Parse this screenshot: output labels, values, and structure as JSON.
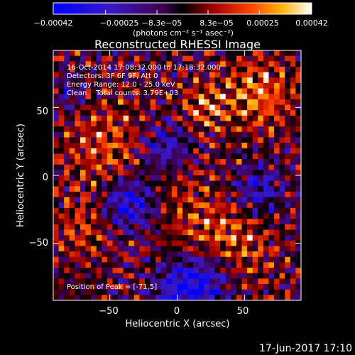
{
  "chart_data": {
    "type": "heatmap",
    "title": "Reconstructed RHESSI Image",
    "xlabel": "Heliocentric X (arcsec)",
    "ylabel": "Heliocentric Y (arcsec)",
    "xlim": [
      -92,
      92
    ],
    "ylim": [
      -92,
      92
    ],
    "xticks": [
      {
        "value": -50,
        "label": "−50"
      },
      {
        "value": 0,
        "label": "0"
      },
      {
        "value": 50,
        "label": "50"
      }
    ],
    "yticks": [
      {
        "value": 50,
        "label": "50"
      },
      {
        "value": 0,
        "label": "0"
      },
      {
        "value": -50,
        "label": "−50"
      }
    ],
    "colorbar": {
      "min": -0.00042,
      "max": 0.00042,
      "ticks": [
        {
          "value": -0.00042,
          "label": "−0.00042"
        },
        {
          "value": -0.00025,
          "label": "−0.00025"
        },
        {
          "value": -8.3e-05,
          "label": "−8.3e−05"
        },
        {
          "value": 8.3e-05,
          "label": "8.3e−05"
        },
        {
          "value": 0.00025,
          "label": "0.00025"
        },
        {
          "value": 0.00042,
          "label": "0.00042"
        }
      ],
      "unit_text": "(photons cm⁻² s⁻¹ asec⁻²)"
    },
    "annotations": [
      "16-Oct-2014 17:08:32.000 to 17:18:32.000",
      "Detectors: 3F 6F 9F, Att 0",
      "Energy Range: 12.0 - 25.0 keV",
      "Clean    Total counts: 3.79E+03"
    ],
    "peak_text": "Position of Peak = [-71,5]",
    "grid": false
  },
  "footer": {
    "date": "17-Jun-2017 17:10"
  }
}
